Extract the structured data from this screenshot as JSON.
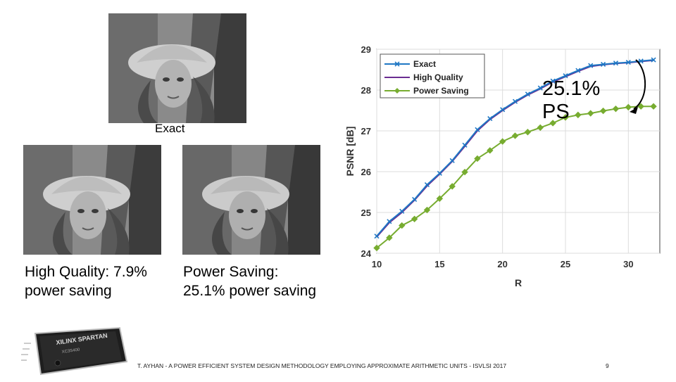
{
  "captions": {
    "exact": "Exact",
    "high_quality": "High Quality: 7.9% power saving",
    "power_saving": "Power Saving: 25.1% power saving"
  },
  "annotation": {
    "line1": "25.1%",
    "line2": "PS"
  },
  "footer": {
    "citation": "T. AYHAN - A POWER EFFICIENT SYSTEM DESIGN METHODOLOGY EMPLOYING APPROXIMATE ARITHMETIC UNITS - ISVLSI 2017",
    "page": "9"
  },
  "colors": {
    "exact": "#1f77c4",
    "high_quality": "#6a2c91",
    "power_saving": "#77ac30"
  },
  "chart_data": {
    "type": "line",
    "xlabel": "R",
    "ylabel": "PSNR [dB]",
    "xlim": [
      10,
      32.5
    ],
    "ylim": [
      24,
      29
    ],
    "xticks": [
      10,
      15,
      20,
      25,
      30
    ],
    "yticks": [
      24,
      25,
      26,
      27,
      28,
      29
    ],
    "grid": true,
    "legend_position": "top-left",
    "x": [
      10,
      11,
      12,
      13,
      14,
      15,
      16,
      17,
      18,
      19,
      20,
      21,
      22,
      23,
      24,
      25,
      26,
      27,
      28,
      29,
      30,
      31,
      32
    ],
    "series": [
      {
        "name": "Exact",
        "marker": "x",
        "values": [
          24.42,
          24.78,
          25.03,
          25.32,
          25.68,
          25.96,
          26.27,
          26.65,
          27.03,
          27.3,
          27.52,
          27.72,
          27.9,
          28.05,
          28.22,
          28.35,
          28.48,
          28.6,
          28.63,
          28.66,
          28.68,
          28.71,
          28.74
        ]
      },
      {
        "name": "High Quality",
        "marker": "none",
        "values": [
          24.4,
          24.75,
          25.0,
          25.3,
          25.65,
          25.94,
          26.25,
          26.62,
          27.0,
          27.28,
          27.5,
          27.7,
          27.88,
          28.03,
          28.2,
          28.33,
          28.46,
          28.58,
          28.62,
          28.65,
          28.67,
          28.7,
          28.73
        ]
      },
      {
        "name": "Power Saving",
        "marker": "diamond",
        "values": [
          24.13,
          24.38,
          24.68,
          24.84,
          25.06,
          25.34,
          25.64,
          25.99,
          26.32,
          26.52,
          26.74,
          26.88,
          26.97,
          27.08,
          27.19,
          27.33,
          27.39,
          27.43,
          27.49,
          27.54,
          27.58,
          27.6,
          27.6
        ]
      }
    ]
  }
}
